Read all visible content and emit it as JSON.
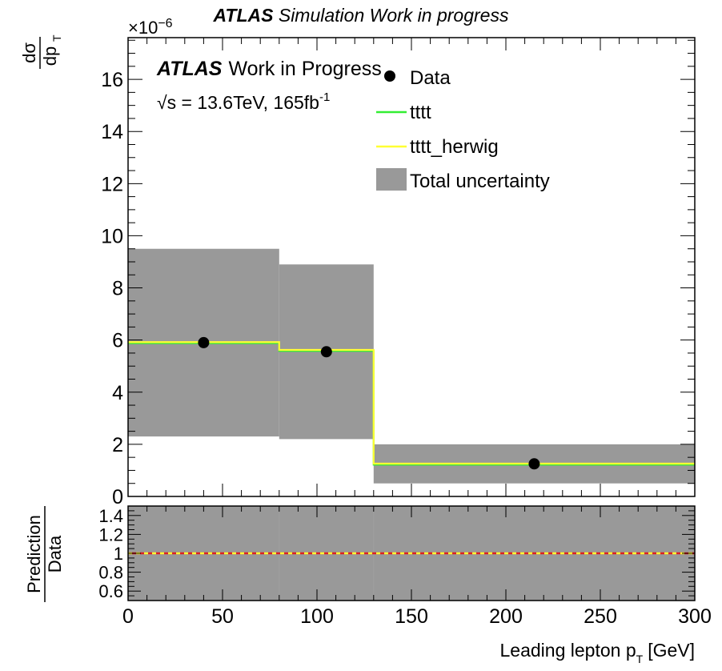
{
  "header": {
    "title_bold": "ATLAS",
    "title_rest": "Simulation Work in progress"
  },
  "labels": {
    "atlas_bold": "ATLAS",
    "atlas_rest": "Work in Progress",
    "energy": "√s = 13.6TeV, 165fb",
    "energy_sup": "-1",
    "exponent": "×10",
    "exponent_power": "−6"
  },
  "chart_data": [
    {
      "type": "line",
      "panel": "main",
      "xlabel": "Leading lepton p",
      "xlabel_sub": "T",
      "xlabel_unit": "[GeV]",
      "ylabel_num": "dσ",
      "ylabel_den": "dp",
      "ylabel_den_sub": "T",
      "y_scale_exponent": -6,
      "xlim": [
        0,
        300
      ],
      "ylim": [
        0,
        17.6
      ],
      "x_ticks": [
        0,
        50,
        100,
        150,
        200,
        250,
        300
      ],
      "y_ticks": [
        0,
        2,
        4,
        6,
        8,
        10,
        12,
        14,
        16
      ],
      "bin_edges": [
        0,
        80,
        130,
        300
      ],
      "legend_position": "top-right",
      "series": [
        {
          "name": "Data",
          "kind": "points",
          "x": [
            40,
            105,
            215
          ],
          "y": [
            5.9,
            5.55,
            1.25
          ],
          "color": "#000000"
        },
        {
          "name": "tttt",
          "kind": "step",
          "values": [
            5.88,
            5.58,
            1.22
          ],
          "color": "#33ee33"
        },
        {
          "name": "tttt_herwig",
          "kind": "step",
          "values": [
            5.92,
            5.62,
            1.26
          ],
          "color": "#ffff33"
        },
        {
          "name": "Total uncertainty",
          "kind": "band",
          "low": [
            2.3,
            2.2,
            0.5
          ],
          "high": [
            9.5,
            8.9,
            2.0
          ],
          "color": "#999999"
        }
      ]
    },
    {
      "type": "line",
      "panel": "ratio",
      "ylabel_num": "Prediction",
      "ylabel_den": "Data",
      "xlim": [
        0,
        300
      ],
      "ylim": [
        0.5,
        1.5
      ],
      "x_ticks": [
        0,
        50,
        100,
        150,
        200,
        250,
        300
      ],
      "y_ticks": [
        0.6,
        0.8,
        1,
        1.2,
        1.4
      ],
      "bin_edges": [
        0,
        80,
        130,
        300
      ],
      "series": [
        {
          "name": "tttt",
          "kind": "ratio-line",
          "value": 1.0,
          "color": "#dd2222"
        },
        {
          "name": "tttt_herwig",
          "kind": "ratio-line",
          "value": 1.0,
          "color": "#ffff33"
        },
        {
          "name": "Total uncertainty",
          "kind": "band",
          "low": [
            0.5,
            0.5,
            0.5
          ],
          "high": [
            1.5,
            1.5,
            1.5
          ],
          "color": "#999999"
        }
      ]
    }
  ]
}
